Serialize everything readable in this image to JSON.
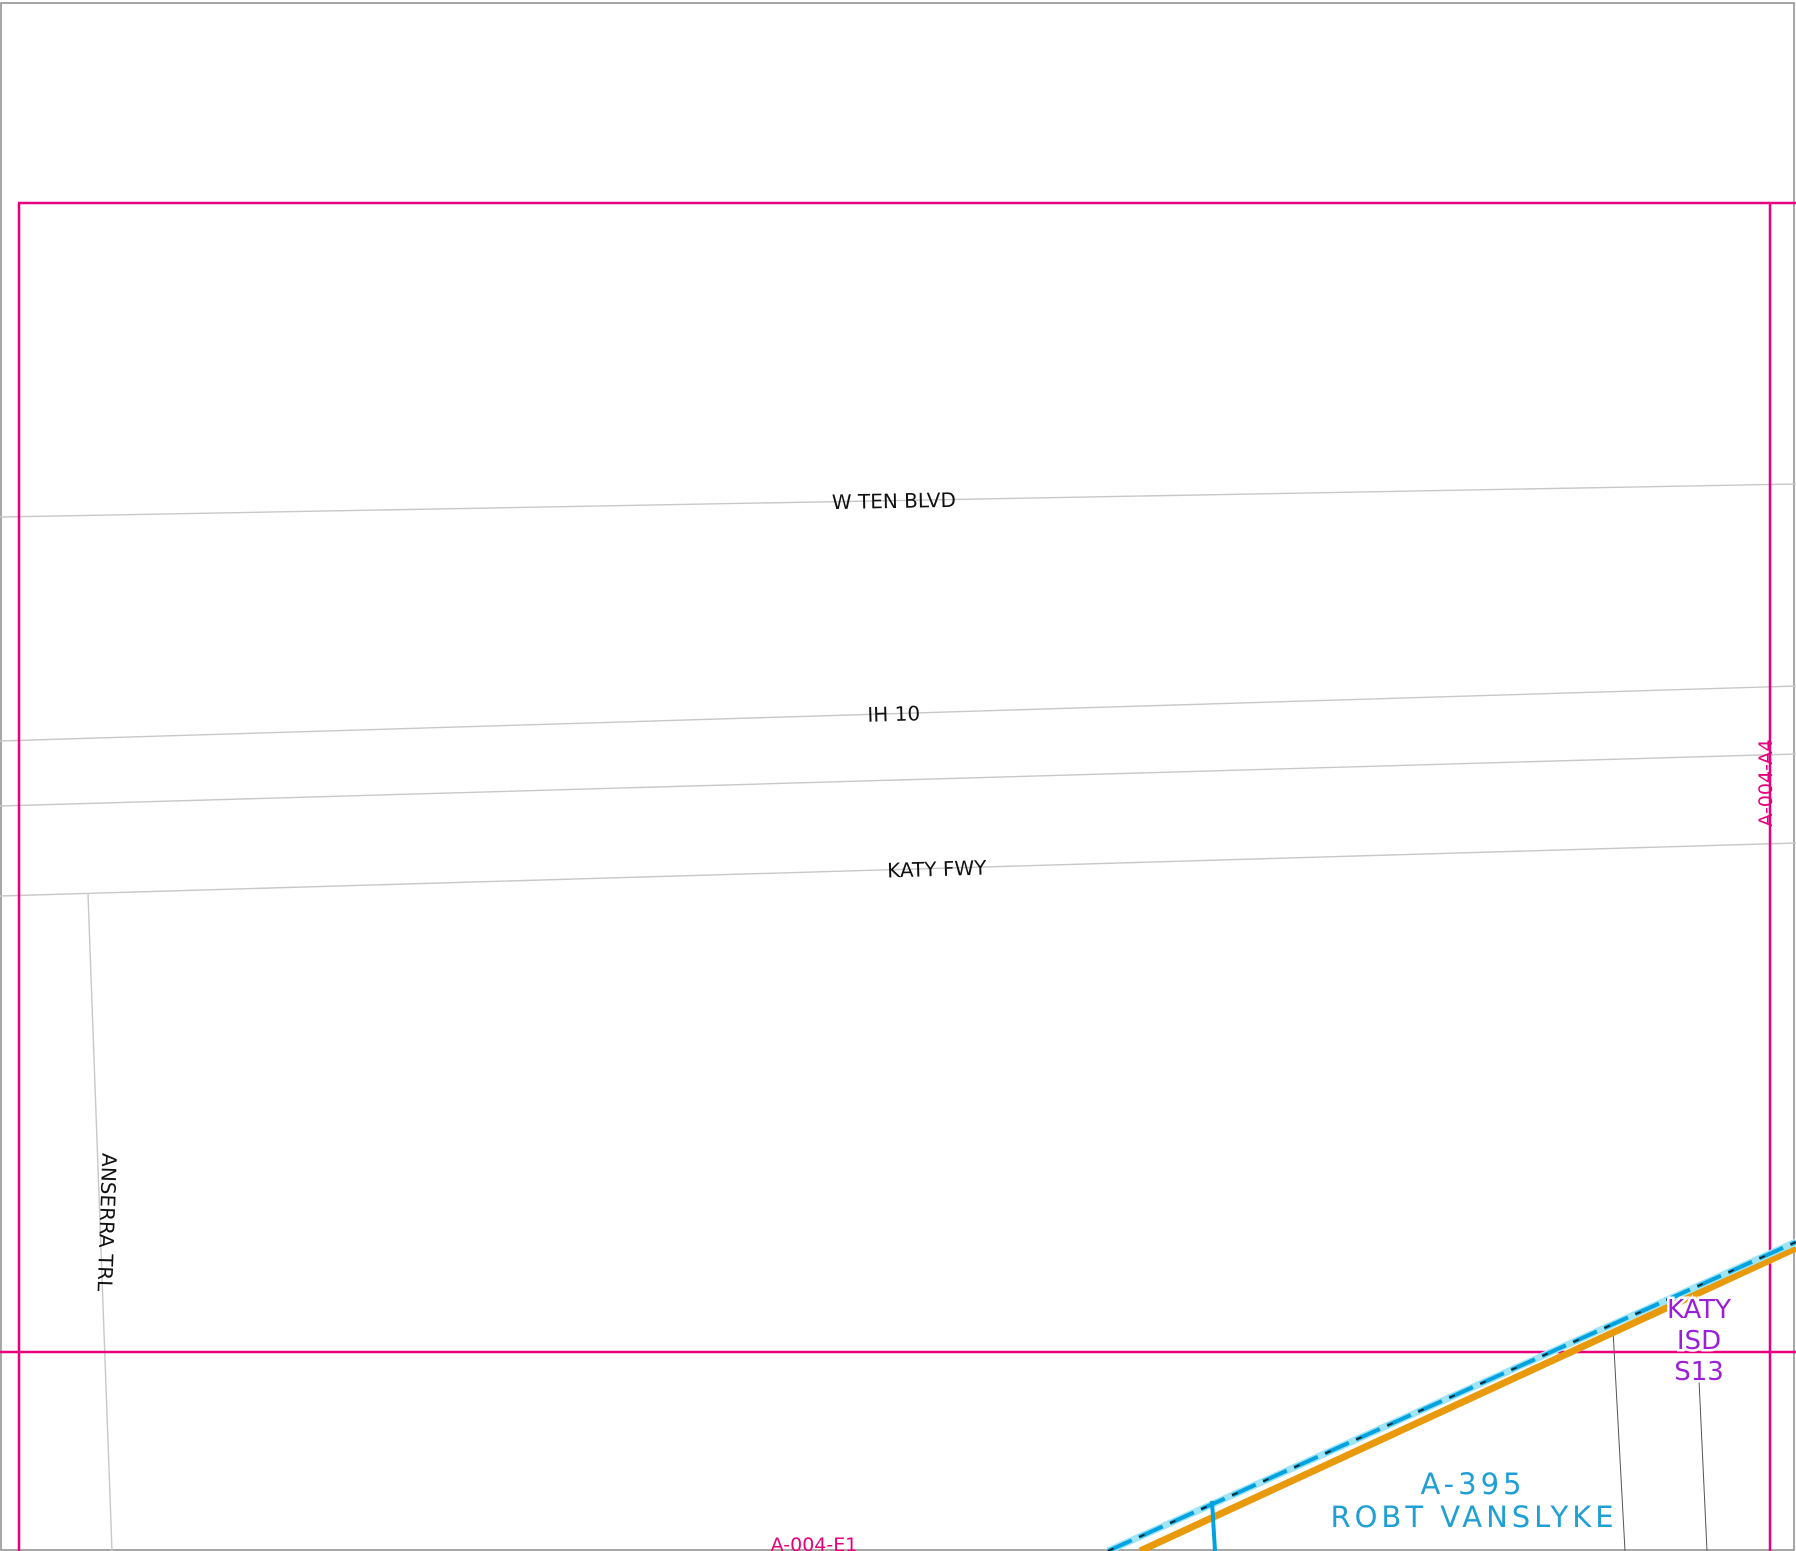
{
  "map": {
    "streets": {
      "w_ten_blvd": "W TEN BLVD",
      "ih_10": "IH 10",
      "katy_fwy": "KATY FWY",
      "anserra_trl": "ANSERRA TRL"
    },
    "grid_labels": {
      "east": "A-004-A4",
      "south": "A-004-E1"
    },
    "abstract": {
      "number": "A-395",
      "name": "ROBT VANSLYKE"
    },
    "district": {
      "line1": "KATY",
      "line2": "ISD",
      "line3": "S13"
    },
    "colors": {
      "grid_line": "#e6007e",
      "street_line": "#c8c8c8",
      "abstract_line": "#00a3e0",
      "district_boundary": "#e89a0c",
      "district_label": "#9b1fd6",
      "abstract_label": "#1f9fd4"
    }
  }
}
